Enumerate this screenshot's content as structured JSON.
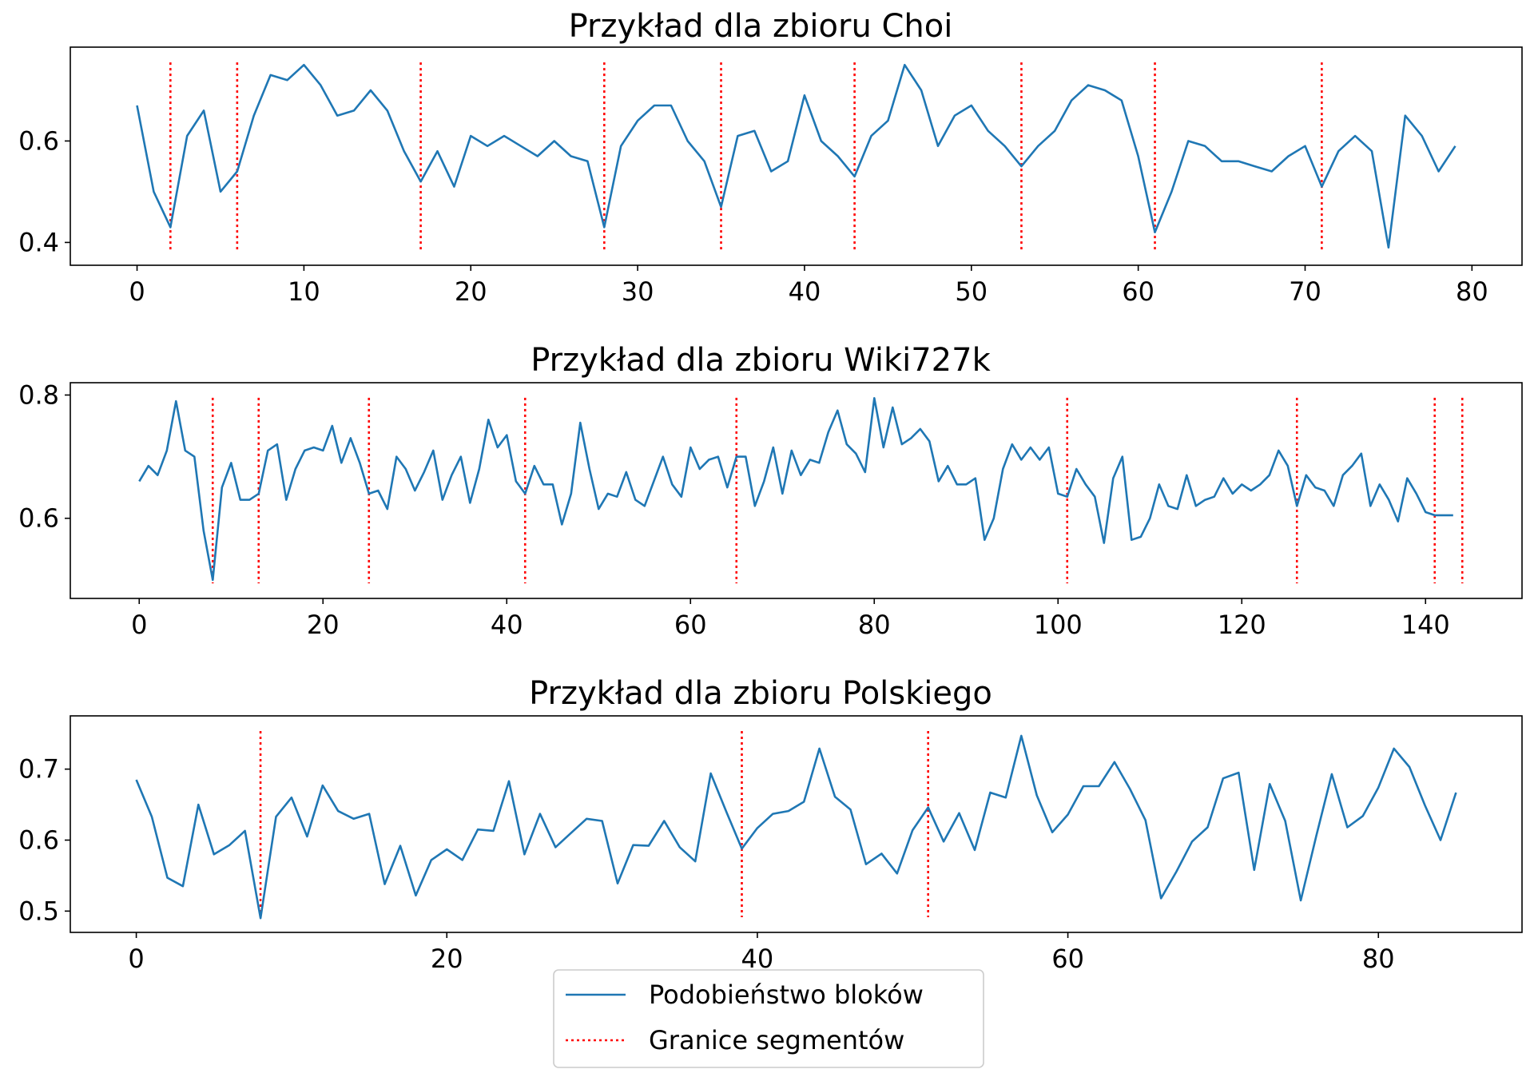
{
  "chart_data": [
    {
      "type": "line",
      "title": "Przykład dla zbioru Choi",
      "xlabel": "",
      "ylabel": "",
      "xlim": [
        -4,
        83
      ],
      "ylim": [
        0.355,
        0.785
      ],
      "xticks": [
        0,
        10,
        20,
        30,
        40,
        50,
        60,
        70,
        80
      ],
      "xtick_labels": [
        "0",
        "10",
        "20",
        "30",
        "40",
        "50",
        "60",
        "70",
        "80"
      ],
      "yticks": [
        0.4,
        0.6
      ],
      "ytick_labels": [
        "0.4",
        "0.6"
      ],
      "series": [
        {
          "name": "Podobieństwo bloków",
          "color": "#1f77b4",
          "x": [
            0,
            1,
            2,
            3,
            4,
            5,
            6,
            7,
            8,
            9,
            10,
            11,
            12,
            13,
            14,
            15,
            16,
            17,
            18,
            19,
            20,
            21,
            22,
            23,
            24,
            25,
            26,
            27,
            28,
            29,
            30,
            31,
            32,
            33,
            34,
            35,
            36,
            37,
            38,
            39,
            40,
            41,
            42,
            43,
            44,
            45,
            46,
            47,
            48,
            49,
            50,
            51,
            52,
            53,
            54,
            55,
            56,
            57,
            58,
            59,
            60,
            61,
            62,
            63,
            64,
            65,
            66,
            67,
            68,
            69,
            70,
            71,
            72,
            73,
            74,
            75,
            76,
            77,
            78,
            79
          ],
          "values": [
            0.67,
            0.5,
            0.43,
            0.61,
            0.66,
            0.5,
            0.54,
            0.65,
            0.73,
            0.72,
            0.75,
            0.71,
            0.65,
            0.66,
            0.7,
            0.66,
            0.58,
            0.52,
            0.58,
            0.51,
            0.61,
            0.59,
            0.61,
            0.59,
            0.57,
            0.6,
            0.57,
            0.56,
            0.43,
            0.59,
            0.64,
            0.67,
            0.67,
            0.6,
            0.56,
            0.47,
            0.61,
            0.62,
            0.54,
            0.56,
            0.69,
            0.6,
            0.57,
            0.53,
            0.61,
            0.64,
            0.75,
            0.7,
            0.59,
            0.65,
            0.67,
            0.62,
            0.59,
            0.55,
            0.59,
            0.62,
            0.68,
            0.71,
            0.7,
            0.68,
            0.57,
            0.42,
            0.5,
            0.6,
            0.59,
            0.56,
            0.56,
            0.55,
            0.54,
            0.57,
            0.59,
            0.51,
            0.58,
            0.61,
            0.58,
            0.39,
            0.65,
            0.61,
            0.54,
            0.59
          ]
        }
      ],
      "boundaries": {
        "name": "Granice segmentów",
        "color": "#ff0000",
        "x": [
          2,
          6,
          17,
          28,
          35,
          43,
          53,
          61,
          71
        ]
      }
    },
    {
      "type": "line",
      "title": "Przykład dla zbioru Wiki727k",
      "xlabel": "",
      "ylabel": "",
      "xlim": [
        -7.5,
        150.5
      ],
      "ylim": [
        0.47,
        0.82
      ],
      "xticks": [
        0,
        20,
        40,
        60,
        80,
        100,
        120,
        140
      ],
      "xtick_labels": [
        "0",
        "20",
        "40",
        "60",
        "80",
        "100",
        "120",
        "140"
      ],
      "yticks": [
        0.6,
        0.8
      ],
      "ytick_labels": [
        "0.6",
        "0.8"
      ],
      "series": [
        {
          "name": "Podobieństwo bloków",
          "color": "#1f77b4",
          "x": [
            0,
            1,
            2,
            3,
            4,
            5,
            6,
            7,
            8,
            9,
            10,
            11,
            12,
            13,
            14,
            15,
            16,
            17,
            18,
            19,
            20,
            21,
            22,
            23,
            24,
            25,
            26,
            27,
            28,
            29,
            30,
            31,
            32,
            33,
            34,
            35,
            36,
            37,
            38,
            39,
            40,
            41,
            42,
            43,
            44,
            45,
            46,
            47,
            48,
            49,
            50,
            51,
            52,
            53,
            54,
            55,
            56,
            57,
            58,
            59,
            60,
            61,
            62,
            63,
            64,
            65,
            66,
            67,
            68,
            69,
            70,
            71,
            72,
            73,
            74,
            75,
            76,
            77,
            78,
            79,
            80,
            81,
            82,
            83,
            84,
            85,
            86,
            87,
            88,
            89,
            90,
            91,
            92,
            93,
            94,
            95,
            96,
            97,
            98,
            99,
            100,
            101,
            102,
            103,
            104,
            105,
            106,
            107,
            108,
            109,
            110,
            111,
            112,
            113,
            114,
            115,
            116,
            117,
            118,
            119,
            120,
            121,
            122,
            123,
            124,
            125,
            126,
            127,
            128,
            129,
            130,
            131,
            132,
            133,
            134,
            135,
            136,
            137,
            138,
            139,
            140,
            141,
            142,
            143
          ],
          "values": [
            0.66,
            0.685,
            0.67,
            0.71,
            0.79,
            0.71,
            0.7,
            0.58,
            0.5,
            0.65,
            0.69,
            0.63,
            0.63,
            0.64,
            0.71,
            0.72,
            0.63,
            0.68,
            0.71,
            0.715,
            0.71,
            0.75,
            0.69,
            0.73,
            0.69,
            0.64,
            0.645,
            0.615,
            0.7,
            0.68,
            0.645,
            0.675,
            0.71,
            0.63,
            0.67,
            0.7,
            0.625,
            0.68,
            0.76,
            0.715,
            0.735,
            0.66,
            0.64,
            0.685,
            0.655,
            0.655,
            0.59,
            0.64,
            0.755,
            0.68,
            0.615,
            0.64,
            0.635,
            0.675,
            0.63,
            0.62,
            0.66,
            0.7,
            0.655,
            0.635,
            0.715,
            0.68,
            0.695,
            0.7,
            0.65,
            0.7,
            0.7,
            0.62,
            0.66,
            0.715,
            0.64,
            0.71,
            0.67,
            0.695,
            0.69,
            0.74,
            0.775,
            0.72,
            0.705,
            0.675,
            0.795,
            0.715,
            0.78,
            0.72,
            0.73,
            0.745,
            0.725,
            0.66,
            0.685,
            0.655,
            0.655,
            0.665,
            0.565,
            0.6,
            0.68,
            0.72,
            0.695,
            0.715,
            0.695,
            0.715,
            0.64,
            0.635,
            0.68,
            0.655,
            0.635,
            0.56,
            0.665,
            0.7,
            0.565,
            0.57,
            0.6,
            0.655,
            0.62,
            0.615,
            0.67,
            0.62,
            0.63,
            0.635,
            0.665,
            0.64,
            0.655,
            0.645,
            0.655,
            0.67,
            0.71,
            0.685,
            0.62,
            0.67,
            0.65,
            0.645,
            0.62,
            0.67,
            0.685,
            0.705,
            0.62,
            0.655,
            0.63,
            0.595,
            0.665,
            0.64,
            0.61,
            0.605,
            0.605,
            0.605
          ]
        }
      ],
      "boundaries": {
        "name": "Granice segmentów",
        "color": "#ff0000",
        "x": [
          8,
          13,
          25,
          42,
          65,
          101,
          126,
          141,
          144
        ]
      }
    },
    {
      "type": "line",
      "title": "Przykład dla zbioru Polskiego",
      "xlabel": "",
      "ylabel": "",
      "xlim": [
        -4.25,
        89.25
      ],
      "ylim": [
        0.47,
        0.775
      ],
      "xticks": [
        0,
        20,
        40,
        60,
        80
      ],
      "xtick_labels": [
        "0",
        "20",
        "40",
        "60",
        "80"
      ],
      "yticks": [
        0.5,
        0.6,
        0.7
      ],
      "ytick_labels": [
        "0.5",
        "0.6",
        "0.7"
      ],
      "series": [
        {
          "name": "Podobieństwo bloków",
          "color": "#1f77b4",
          "x": [
            0,
            1,
            2,
            3,
            4,
            5,
            6,
            7,
            8,
            9,
            10,
            11,
            12,
            13,
            14,
            15,
            16,
            17,
            18,
            19,
            20,
            21,
            22,
            23,
            24,
            25,
            26,
            27,
            28,
            29,
            30,
            31,
            32,
            33,
            34,
            35,
            36,
            37,
            38,
            39,
            40,
            41,
            42,
            43,
            44,
            45,
            46,
            47,
            48,
            49,
            50,
            51,
            52,
            53,
            54,
            55,
            56,
            57,
            58,
            59,
            60,
            61,
            62,
            63,
            64,
            65,
            66,
            67,
            68,
            69,
            70,
            71,
            72,
            73,
            74,
            75,
            76,
            77,
            78,
            79,
            80,
            81,
            82,
            83,
            84,
            85
          ],
          "values": [
            0.685,
            0.633,
            0.547,
            0.535,
            0.65,
            0.58,
            0.593,
            0.613,
            0.49,
            0.633,
            0.66,
            0.605,
            0.677,
            0.641,
            0.63,
            0.637,
            0.538,
            0.592,
            0.522,
            0.572,
            0.587,
            0.572,
            0.615,
            0.613,
            0.683,
            0.58,
            0.637,
            0.59,
            0.61,
            0.63,
            0.627,
            0.539,
            0.593,
            0.592,
            0.627,
            0.59,
            0.57,
            0.694,
            0.64,
            0.588,
            0.617,
            0.637,
            0.641,
            0.654,
            0.729,
            0.661,
            0.643,
            0.566,
            0.581,
            0.553,
            0.614,
            0.646,
            0.598,
            0.638,
            0.586,
            0.667,
            0.66,
            0.747,
            0.663,
            0.611,
            0.636,
            0.676,
            0.676,
            0.71,
            0.672,
            0.628,
            0.518,
            0.556,
            0.598,
            0.618,
            0.687,
            0.695,
            0.558,
            0.679,
            0.627,
            0.515,
            0.606,
            0.693,
            0.618,
            0.634,
            0.674,
            0.729,
            0.703,
            0.649,
            0.6,
            0.667
          ]
        }
      ],
      "boundaries": {
        "name": "Granice segmentów",
        "color": "#ff0000",
        "x": [
          8,
          39,
          51
        ]
      }
    }
  ],
  "legend": {
    "placement": "bottom-center",
    "entries": [
      {
        "label": "Podobieństwo bloków",
        "style": "solid",
        "color": "#1f77b4"
      },
      {
        "label": "Granice segmentów",
        "style": "dotted",
        "color": "#ff0000"
      }
    ]
  }
}
